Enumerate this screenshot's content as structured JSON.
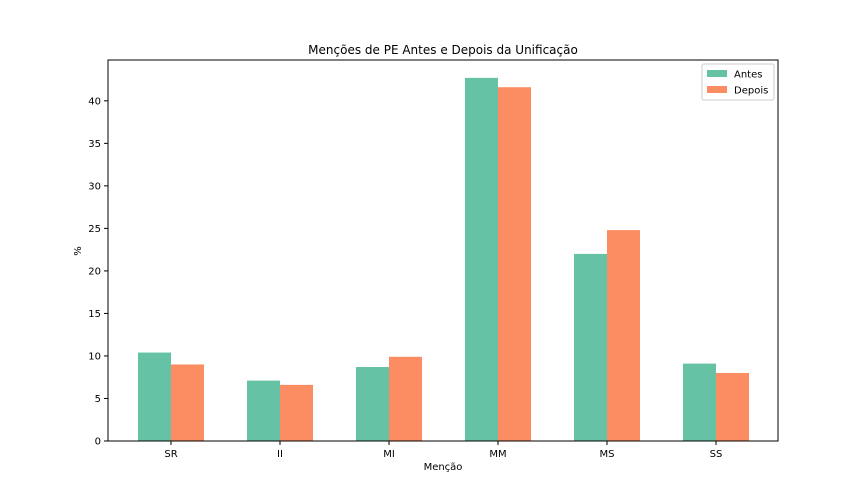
{
  "chart_data": {
    "type": "bar",
    "title": "Menções de PE Antes e Depois da Unificação",
    "xlabel": "Menção",
    "ylabel": "%",
    "categories": [
      "SR",
      "II",
      "MI",
      "MM",
      "MS",
      "SS"
    ],
    "series": [
      {
        "name": "Antes",
        "color": "#66c2a5",
        "values": [
          10.4,
          7.1,
          8.7,
          42.7,
          22.0,
          9.1
        ]
      },
      {
        "name": "Depois",
        "color": "#fc8d62",
        "values": [
          9.0,
          6.6,
          9.9,
          41.6,
          24.8,
          8.0
        ]
      }
    ],
    "ylim": [
      0,
      44.8
    ],
    "yticks": [
      0,
      5,
      10,
      15,
      20,
      25,
      30,
      35,
      40
    ],
    "ytick_labels": [
      "0",
      "5",
      "10",
      "15",
      "20",
      "25",
      "30",
      "35",
      "40"
    ],
    "grid": false,
    "legend_position": "top-right"
  }
}
